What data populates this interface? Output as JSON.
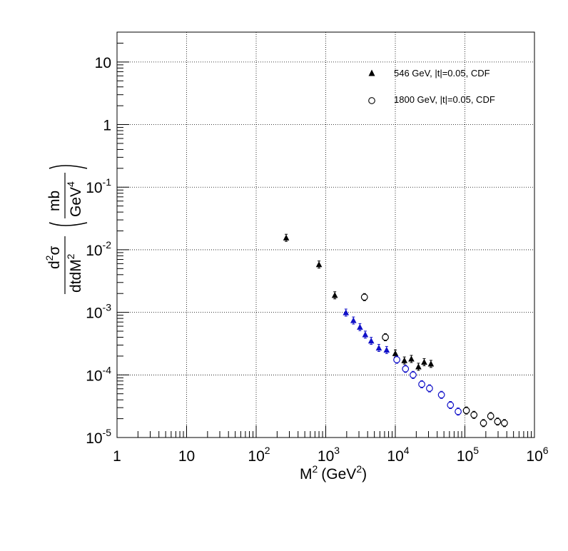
{
  "chart_data": {
    "type": "scatter",
    "x_scale": "log",
    "y_scale": "log",
    "xlim": [
      1,
      1000000
    ],
    "ylim": [
      1e-05,
      30
    ],
    "grid": true,
    "legend_position": "top-right",
    "xlabel": {
      "base": "M",
      "sup": "2",
      "units": "(GeV",
      "units_sup": "2",
      "close": ")"
    },
    "ylabel": {
      "numerator": "d",
      "num_sup": "2",
      "num_rest": "σ",
      "denominator": "dtdM",
      "den_sup": "2",
      "unit_num": "mb",
      "unit_den": "GeV",
      "unit_sup": "4"
    },
    "x_ticks": [
      {
        "v": 1,
        "base": "1",
        "exp": ""
      },
      {
        "v": 10,
        "base": "10",
        "exp": ""
      },
      {
        "v": 100,
        "base": "10",
        "exp": "2"
      },
      {
        "v": 1000,
        "base": "10",
        "exp": "3"
      },
      {
        "v": 10000,
        "base": "10",
        "exp": "4"
      },
      {
        "v": 100000,
        "base": "10",
        "exp": "5"
      },
      {
        "v": 1000000,
        "base": "10",
        "exp": "6"
      }
    ],
    "y_ticks": [
      {
        "v": 1e-05,
        "base": "10",
        "exp": "-5"
      },
      {
        "v": 0.0001,
        "base": "10",
        "exp": "-4"
      },
      {
        "v": 0.001,
        "base": "10",
        "exp": "-3"
      },
      {
        "v": 0.01,
        "base": "10",
        "exp": "-2"
      },
      {
        "v": 0.1,
        "base": "10",
        "exp": "-1"
      },
      {
        "v": 1,
        "base": "1",
        "exp": ""
      },
      {
        "v": 10,
        "base": "10",
        "exp": ""
      }
    ],
    "series": [
      {
        "name": "546 GeV,  |t|=0.05, CDF",
        "marker": "triangle",
        "points": [
          {
            "x": 270,
            "y": 0.0155,
            "c": "#000000"
          },
          {
            "x": 800,
            "y": 0.0058,
            "c": "#000000"
          },
          {
            "x": 1350,
            "y": 0.00187,
            "c": "#000000"
          },
          {
            "x": 1950,
            "y": 0.00099,
            "c": "#1010c8"
          },
          {
            "x": 2500,
            "y": 0.00074,
            "c": "#1010c8"
          },
          {
            "x": 3100,
            "y": 0.00058,
            "c": "#1010c8"
          },
          {
            "x": 3700,
            "y": 0.00044,
            "c": "#1010c8"
          },
          {
            "x": 4500,
            "y": 0.00035,
            "c": "#1010c8"
          },
          {
            "x": 5800,
            "y": 0.00027,
            "c": "#1010c8"
          },
          {
            "x": 7500,
            "y": 0.00025,
            "c": "#1010c8"
          },
          {
            "x": 10000,
            "y": 0.00022,
            "c": "#000000"
          },
          {
            "x": 13500,
            "y": 0.00017,
            "c": "#000000"
          },
          {
            "x": 17000,
            "y": 0.00018,
            "c": "#000000"
          },
          {
            "x": 21500,
            "y": 0.000135,
            "c": "#000000"
          },
          {
            "x": 26000,
            "y": 0.00016,
            "c": "#000000"
          },
          {
            "x": 32500,
            "y": 0.00015,
            "c": "#000000"
          }
        ]
      },
      {
        "name": "1800 GeV, |t|=0.05, CDF",
        "marker": "circle",
        "points": [
          {
            "x": 3600,
            "y": 0.00175,
            "c": "#000000"
          },
          {
            "x": 7200,
            "y": 0.0004,
            "c": "#000000"
          },
          {
            "x": 10500,
            "y": 0.000175,
            "c": "#1010c8"
          },
          {
            "x": 14000,
            "y": 0.000125,
            "c": "#1010c8"
          },
          {
            "x": 18000,
            "y": 0.0001,
            "c": "#1010c8"
          },
          {
            "x": 24000,
            "y": 7.1e-05,
            "c": "#1010c8"
          },
          {
            "x": 31000,
            "y": 6.1e-05,
            "c": "#1010c8"
          },
          {
            "x": 46000,
            "y": 4.8e-05,
            "c": "#1010c8"
          },
          {
            "x": 62000,
            "y": 3.3e-05,
            "c": "#1010c8"
          },
          {
            "x": 80000,
            "y": 2.6e-05,
            "c": "#1010c8"
          },
          {
            "x": 105000,
            "y": 2.7e-05,
            "c": "#000000"
          },
          {
            "x": 135000,
            "y": 2.3e-05,
            "c": "#000000"
          },
          {
            "x": 185000,
            "y": 1.7e-05,
            "c": "#000000"
          },
          {
            "x": 235000,
            "y": 2.2e-05,
            "c": "#000000"
          },
          {
            "x": 295000,
            "y": 1.8e-05,
            "c": "#000000"
          },
          {
            "x": 370000,
            "y": 1.7e-05,
            "c": "#000000"
          }
        ]
      }
    ]
  }
}
